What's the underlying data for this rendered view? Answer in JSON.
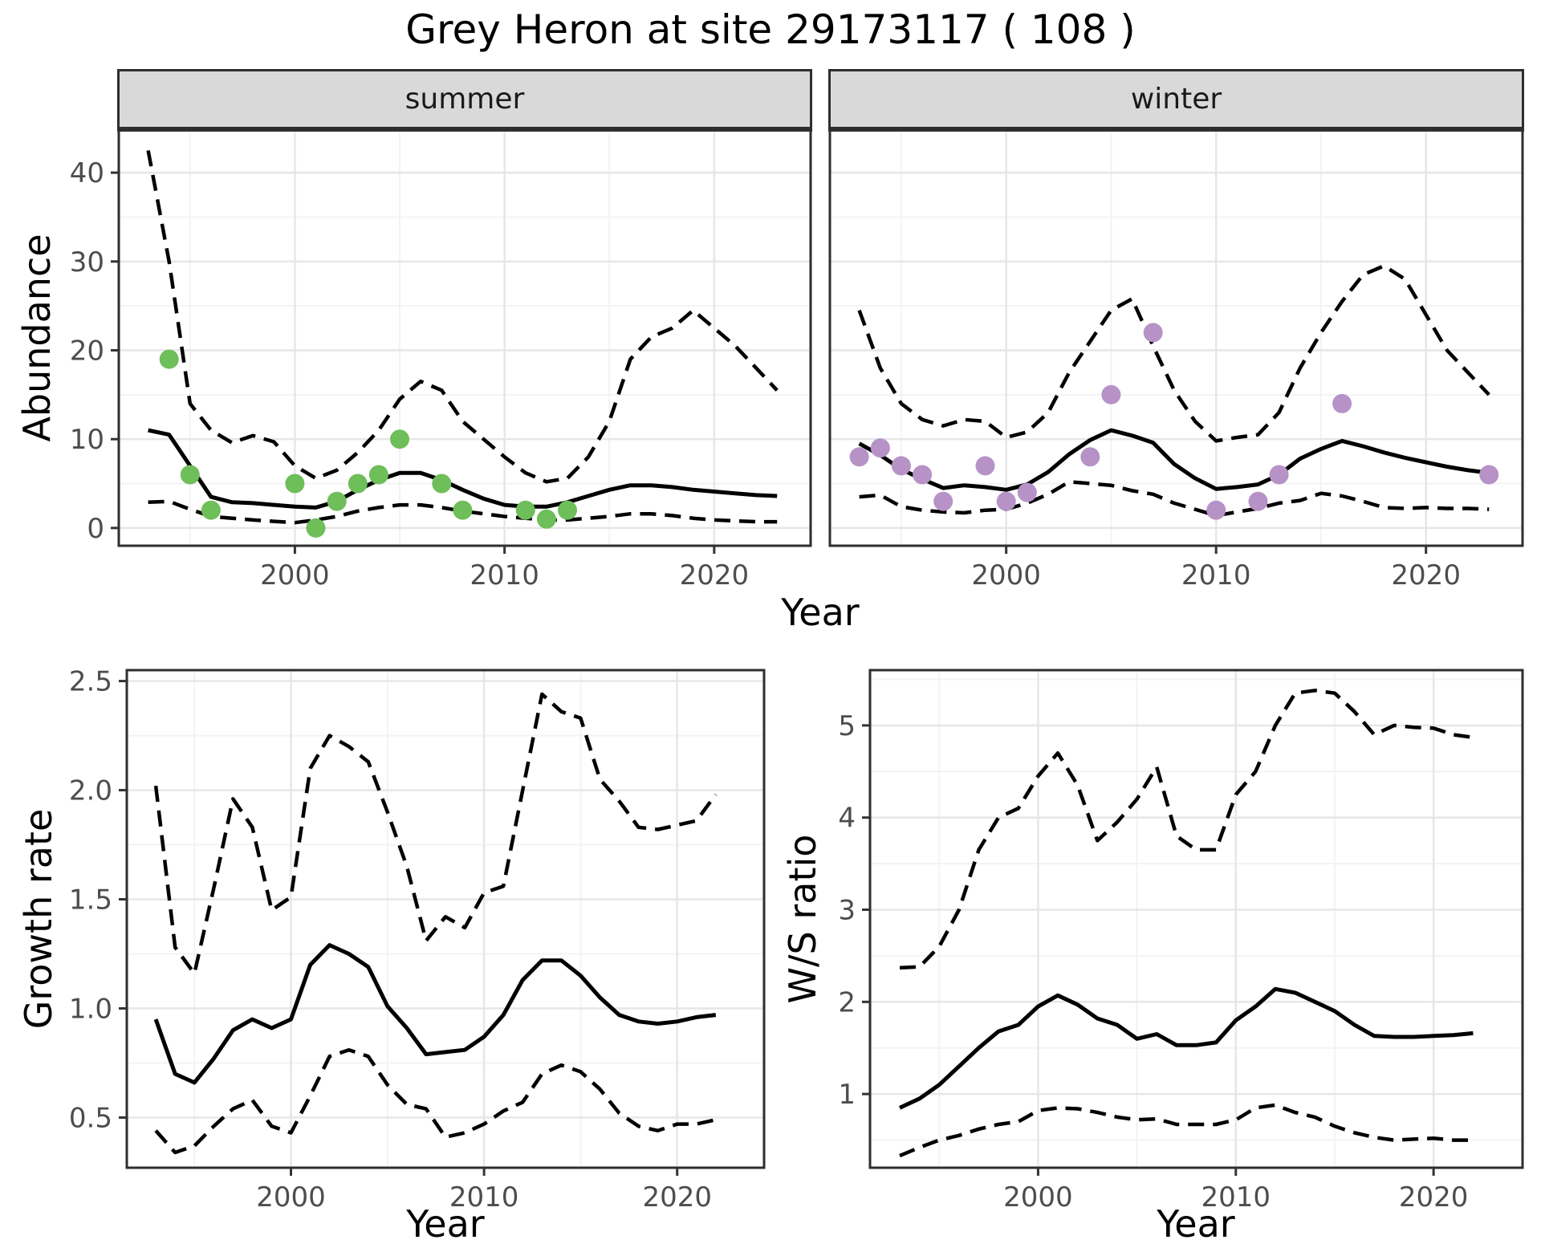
{
  "title": "Grey Heron at site 29173117 ( 108 )",
  "top_row": {
    "ylabel": "Abundance",
    "xlabel": "Year",
    "facets": [
      {
        "label": "summer"
      },
      {
        "label": "winter"
      }
    ]
  },
  "bottom_row": {
    "left": {
      "ylabel": "Growth rate",
      "xlabel": "Year"
    },
    "right": {
      "ylabel": "W/S ratio",
      "xlabel": "Year"
    }
  },
  "colors": {
    "line": "#000000",
    "summer_points": "#6EBE5A",
    "winter_points": "#B692C6",
    "grid_major": "#E6E6E6",
    "grid_minor": "#F3F3F3",
    "strip_bg": "#D9D9D9",
    "axis_text": "#4D4D4D"
  },
  "chart_data": [
    {
      "id": "summer",
      "type": "line",
      "title": "summer",
      "xlabel": "Year",
      "ylabel": "Abundance",
      "xlim": [
        1991.6,
        2024.6
      ],
      "ylim": [
        -2,
        44.8
      ],
      "xticks": [
        2000,
        2010,
        2020
      ],
      "xtick_labels": [
        "2000",
        "2010",
        "2020"
      ],
      "xminor": [
        1995,
        2005,
        2015
      ],
      "yticks": [
        0,
        10,
        20,
        30,
        40
      ],
      "ytick_labels": [
        "0",
        "10",
        "20",
        "30",
        "40"
      ],
      "yminor": [
        5,
        15,
        25,
        35
      ],
      "x": [
        1993,
        1994,
        1995,
        1996,
        1997,
        1998,
        1999,
        2000,
        2001,
        2002,
        2003,
        2004,
        2005,
        2006,
        2007,
        2008,
        2009,
        2010,
        2011,
        2012,
        2013,
        2014,
        2015,
        2016,
        2017,
        2018,
        2019,
        2020,
        2021,
        2022,
        2023
      ],
      "series": [
        {
          "name": "upper_bound",
          "style": "dashed",
          "values": [
            42.5,
            30,
            14,
            11,
            9.6,
            10.4,
            9.7,
            7,
            5.6,
            6.5,
            8.5,
            11,
            14.5,
            16.5,
            15.5,
            12,
            10,
            8,
            6.2,
            5.2,
            5.6,
            8,
            12,
            19,
            21.5,
            22.5,
            24.5,
            22.5,
            20.5,
            18,
            15.5
          ]
        },
        {
          "name": "mean",
          "style": "solid",
          "values": [
            11,
            10.5,
            7,
            3.5,
            2.9,
            2.8,
            2.6,
            2.4,
            2.3,
            3,
            4.3,
            5.4,
            6.2,
            6.2,
            5.4,
            4.3,
            3.3,
            2.6,
            2.4,
            2.4,
            2.9,
            3.6,
            4.3,
            4.8,
            4.8,
            4.6,
            4.3,
            4.1,
            3.9,
            3.7,
            3.6
          ]
        },
        {
          "name": "lower_bound",
          "style": "dashed",
          "values": [
            2.9,
            3,
            2.1,
            1.3,
            1.1,
            0.9,
            0.75,
            0.6,
            0.9,
            1.3,
            1.9,
            2.3,
            2.6,
            2.6,
            2.3,
            1.9,
            1.6,
            1.3,
            1.1,
            0.9,
            0.9,
            1.1,
            1.3,
            1.6,
            1.6,
            1.4,
            1.1,
            0.9,
            0.8,
            0.7,
            0.7
          ]
        }
      ],
      "points": {
        "name": "observed-counts",
        "color": "#6EBE5A",
        "data": [
          [
            1994,
            19
          ],
          [
            1995,
            6
          ],
          [
            1996,
            2
          ],
          [
            2000,
            5
          ],
          [
            2001,
            0
          ],
          [
            2002,
            3
          ],
          [
            2003,
            5
          ],
          [
            2004,
            6
          ],
          [
            2005,
            10
          ],
          [
            2007,
            5
          ],
          [
            2008,
            2
          ],
          [
            2011,
            2
          ],
          [
            2012,
            1
          ],
          [
            2013,
            2
          ]
        ]
      }
    },
    {
      "id": "winter",
      "type": "line",
      "title": "winter",
      "xlabel": "Year",
      "ylabel": "Abundance",
      "xlim": [
        1991.6,
        2024.6
      ],
      "ylim": [
        -2,
        44.8
      ],
      "xticks": [
        2000,
        2010,
        2020
      ],
      "xtick_labels": [
        "2000",
        "2010",
        "2020"
      ],
      "xminor": [
        1995,
        2005,
        2015
      ],
      "yticks": [
        0,
        10,
        20,
        30,
        40
      ],
      "yminor": [
        5,
        15,
        25,
        35
      ],
      "x": [
        1993,
        1994,
        1995,
        1996,
        1997,
        1998,
        1999,
        2000,
        2001,
        2002,
        2003,
        2004,
        2005,
        2006,
        2007,
        2008,
        2009,
        2010,
        2011,
        2012,
        2013,
        2014,
        2015,
        2016,
        2017,
        2018,
        2019,
        2020,
        2021,
        2022,
        2023
      ],
      "series": [
        {
          "name": "upper_bound",
          "style": "dashed",
          "values": [
            24.5,
            18,
            14,
            12.2,
            11.5,
            12.2,
            12,
            10.2,
            10.8,
            13,
            17.5,
            21,
            24.5,
            25.8,
            20.5,
            15.5,
            12,
            9.8,
            10.2,
            10.5,
            13,
            18,
            22,
            25.5,
            28.5,
            29.5,
            28,
            24,
            20,
            17.5,
            15
          ]
        },
        {
          "name": "mean",
          "style": "solid",
          "values": [
            9.5,
            8.2,
            6.6,
            5.5,
            4.5,
            4.8,
            4.6,
            4.3,
            4.9,
            6.3,
            8.3,
            9.9,
            11,
            10.4,
            9.6,
            7.2,
            5.6,
            4.4,
            4.6,
            4.9,
            6,
            7.8,
            8.9,
            9.8,
            9.2,
            8.5,
            7.9,
            7.4,
            6.9,
            6.5,
            6.2
          ]
        },
        {
          "name": "lower_bound",
          "style": "dashed",
          "values": [
            3.5,
            3.7,
            2.4,
            2,
            1.8,
            1.7,
            2,
            2.1,
            2.8,
            3.8,
            5.2,
            5,
            4.8,
            4.2,
            3.8,
            2.8,
            2.1,
            1.4,
            1.8,
            2.2,
            2.8,
            3.1,
            3.9,
            3.6,
            3,
            2.3,
            2.2,
            2.3,
            2.2,
            2.2,
            2.1
          ]
        }
      ],
      "points": {
        "name": "observed-counts",
        "color": "#B692C6",
        "data": [
          [
            1993,
            8
          ],
          [
            1994,
            9
          ],
          [
            1995,
            7
          ],
          [
            1996,
            6
          ],
          [
            1997,
            3
          ],
          [
            1999,
            7
          ],
          [
            2000,
            3
          ],
          [
            2001,
            4
          ],
          [
            2004,
            8
          ],
          [
            2005,
            15
          ],
          [
            2007,
            22
          ],
          [
            2010,
            2
          ],
          [
            2012,
            3
          ],
          [
            2013,
            6
          ],
          [
            2016,
            14
          ],
          [
            2023,
            6
          ]
        ]
      }
    },
    {
      "id": "growth",
      "type": "line",
      "title": "Growth rate",
      "xlabel": "Year",
      "ylabel": "Growth rate",
      "xlim": [
        1991.5,
        2024.5
      ],
      "ylim": [
        0.27,
        2.55
      ],
      "xticks": [
        2000,
        2010,
        2020
      ],
      "xtick_labels": [
        "2000",
        "2010",
        "2020"
      ],
      "xminor": [
        1995,
        2005,
        2015
      ],
      "yticks": [
        0.5,
        1.0,
        1.5,
        2.0,
        2.5
      ],
      "ytick_labels": [
        "0.5",
        "1.0",
        "1.5",
        "2.0",
        "2.5"
      ],
      "yminor": [
        0.75,
        1.25,
        1.75,
        2.25
      ],
      "x": [
        1993,
        1994,
        1995,
        1996,
        1997,
        1998,
        1999,
        2000,
        2001,
        2002,
        2003,
        2004,
        2005,
        2006,
        2007,
        2008,
        2009,
        2010,
        2011,
        2012,
        2013,
        2014,
        2015,
        2016,
        2017,
        2018,
        2019,
        2020,
        2021,
        2022
      ],
      "series": [
        {
          "name": "upper_bound",
          "style": "dashed",
          "values": [
            2.02,
            1.28,
            1.16,
            1.55,
            1.96,
            1.83,
            1.45,
            1.51,
            2.1,
            2.25,
            2.2,
            2.13,
            1.9,
            1.65,
            1.31,
            1.42,
            1.37,
            1.53,
            1.56,
            2.0,
            2.44,
            2.36,
            2.33,
            2.05,
            1.95,
            1.83,
            1.82,
            1.84,
            1.86,
            1.98
          ]
        },
        {
          "name": "mean",
          "style": "solid",
          "values": [
            0.95,
            0.7,
            0.66,
            0.77,
            0.9,
            0.95,
            0.91,
            0.95,
            1.2,
            1.29,
            1.25,
            1.19,
            1.01,
            0.91,
            0.79,
            0.8,
            0.81,
            0.87,
            0.97,
            1.13,
            1.22,
            1.22,
            1.15,
            1.05,
            0.97,
            0.94,
            0.93,
            0.94,
            0.96,
            0.97
          ]
        },
        {
          "name": "lower_bound",
          "style": "dashed",
          "values": [
            0.44,
            0.34,
            0.37,
            0.46,
            0.54,
            0.58,
            0.46,
            0.43,
            0.6,
            0.78,
            0.81,
            0.78,
            0.65,
            0.56,
            0.54,
            0.41,
            0.43,
            0.47,
            0.53,
            0.57,
            0.7,
            0.74,
            0.71,
            0.63,
            0.52,
            0.46,
            0.44,
            0.47,
            0.47,
            0.49
          ]
        }
      ]
    },
    {
      "id": "ws",
      "type": "line",
      "title": "W/S ratio",
      "xlabel": "Year",
      "ylabel": "W/S ratio",
      "xlim": [
        1991.5,
        2024.5
      ],
      "ylim": [
        0.2,
        5.6
      ],
      "xticks": [
        2000,
        2010,
        2020
      ],
      "xtick_labels": [
        "2000",
        "2010",
        "2020"
      ],
      "xminor": [
        1995,
        2005,
        2015
      ],
      "yticks": [
        1,
        2,
        3,
        4,
        5
      ],
      "ytick_labels": [
        "1",
        "2",
        "3",
        "4",
        "5"
      ],
      "yminor": [
        0.5,
        1.5,
        2.5,
        3.5,
        4.5,
        5.5
      ],
      "x": [
        1993,
        1994,
        1995,
        1996,
        1997,
        1998,
        1999,
        2000,
        2001,
        2002,
        2003,
        2004,
        2005,
        2006,
        2007,
        2008,
        2009,
        2010,
        2011,
        2012,
        2013,
        2014,
        2015,
        2016,
        2017,
        2018,
        2019,
        2020,
        2021,
        2022
      ],
      "series": [
        {
          "name": "upper_bound",
          "style": "dashed",
          "values": [
            2.37,
            2.38,
            2.6,
            3.0,
            3.65,
            4.0,
            4.1,
            4.45,
            4.7,
            4.35,
            3.75,
            3.95,
            4.2,
            4.55,
            3.8,
            3.65,
            3.65,
            4.25,
            4.5,
            5.0,
            5.35,
            5.38,
            5.35,
            5.15,
            4.9,
            5.0,
            4.98,
            4.97,
            4.9,
            4.87
          ]
        },
        {
          "name": "mean",
          "style": "solid",
          "values": [
            0.85,
            0.95,
            1.1,
            1.3,
            1.5,
            1.68,
            1.75,
            1.95,
            2.07,
            1.97,
            1.82,
            1.75,
            1.6,
            1.65,
            1.53,
            1.53,
            1.56,
            1.8,
            1.95,
            2.14,
            2.1,
            2.0,
            1.9,
            1.75,
            1.63,
            1.62,
            1.62,
            1.63,
            1.64,
            1.66
          ]
        },
        {
          "name": "lower_bound",
          "style": "dashed",
          "values": [
            0.33,
            0.42,
            0.5,
            0.55,
            0.62,
            0.67,
            0.7,
            0.82,
            0.85,
            0.84,
            0.8,
            0.75,
            0.72,
            0.73,
            0.67,
            0.67,
            0.67,
            0.72,
            0.85,
            0.88,
            0.8,
            0.75,
            0.65,
            0.58,
            0.53,
            0.5,
            0.51,
            0.52,
            0.5,
            0.5
          ]
        }
      ]
    }
  ]
}
